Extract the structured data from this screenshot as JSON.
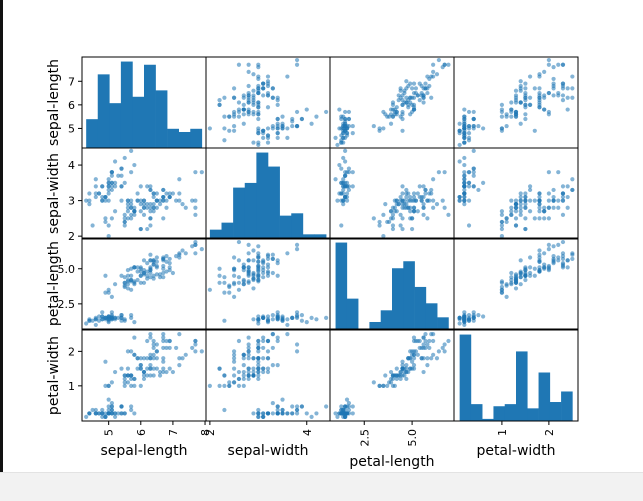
{
  "colors": {
    "marker": "#1f77b4",
    "frame": "#000000",
    "background": "#ffffff"
  },
  "chart_data": {
    "type": "scatter",
    "kind": "scatter-matrix",
    "diagonal": "histogram",
    "grid": false,
    "variables": [
      "sepal-length",
      "sepal-width",
      "petal-length",
      "petal-width"
    ],
    "ranges": {
      "sepal-length": [
        4.17,
        8.03
      ],
      "sepal-width": [
        1.92,
        4.48
      ],
      "petal-length": [
        0.71,
        7.19
      ],
      "petal-width": [
        -0.02,
        2.62
      ]
    },
    "ticks": {
      "sepal-length": {
        "values": [
          5,
          6,
          7
        ],
        "labels": [
          "5",
          "6",
          "7"
        ]
      },
      "sepal-width": {
        "values": [
          2,
          3,
          4
        ],
        "labels": [
          "2",
          "3",
          "4"
        ]
      },
      "petal-length": {
        "values": [
          2.5,
          5.0
        ],
        "labels": [
          "2.5",
          "5.0"
        ]
      },
      "petal-width": {
        "values": [
          1,
          2
        ],
        "labels": [
          "1",
          "2"
        ]
      }
    },
    "bottom_ticks": {
      "sepal-length": {
        "values": [
          5,
          6,
          7,
          8
        ],
        "labels": [
          "5",
          "6",
          "7",
          "8"
        ]
      },
      "sepal-width": {
        "values": [
          2,
          4
        ],
        "labels": [
          "2",
          "4"
        ]
      },
      "petal-length": {
        "values": [
          2.5,
          5.0
        ],
        "labels": [
          "2.5",
          "5.0"
        ]
      },
      "petal-width": {
        "values": [
          1,
          2
        ],
        "labels": [
          "1",
          "2"
        ]
      }
    },
    "histograms": {
      "sepal-length": {
        "range": [
          4.3,
          7.9
        ],
        "counts": [
          9,
          23,
          14,
          27,
          16,
          26,
          18,
          6,
          5,
          6
        ]
      },
      "sepal-width": {
        "range": [
          2.0,
          4.4
        ],
        "counts": [
          4,
          7,
          22,
          24,
          37,
          31,
          10,
          11,
          2,
          2
        ]
      },
      "petal-length": {
        "range": [
          1.0,
          6.9
        ],
        "counts": [
          37,
          13,
          0,
          3,
          8,
          26,
          29,
          18,
          11,
          5
        ]
      },
      "petal-width": {
        "range": [
          0.1,
          2.5
        ],
        "counts": [
          41,
          8,
          1,
          7,
          8,
          33,
          6,
          23,
          9,
          14
        ]
      }
    },
    "observations": [
      [
        5.1,
        3.5,
        1.4,
        0.2
      ],
      [
        4.9,
        3.0,
        1.4,
        0.2
      ],
      [
        4.7,
        3.2,
        1.3,
        0.2
      ],
      [
        4.6,
        3.1,
        1.5,
        0.2
      ],
      [
        5.0,
        3.6,
        1.4,
        0.2
      ],
      [
        5.4,
        3.9,
        1.7,
        0.4
      ],
      [
        4.6,
        3.4,
        1.4,
        0.3
      ],
      [
        5.0,
        3.4,
        1.5,
        0.2
      ],
      [
        4.4,
        2.9,
        1.4,
        0.2
      ],
      [
        4.9,
        3.1,
        1.5,
        0.1
      ],
      [
        5.4,
        3.7,
        1.5,
        0.2
      ],
      [
        4.8,
        3.4,
        1.6,
        0.2
      ],
      [
        4.8,
        3.0,
        1.4,
        0.1
      ],
      [
        4.3,
        3.0,
        1.1,
        0.1
      ],
      [
        5.8,
        4.0,
        1.2,
        0.2
      ],
      [
        5.7,
        4.4,
        1.5,
        0.4
      ],
      [
        5.4,
        3.9,
        1.3,
        0.4
      ],
      [
        5.1,
        3.5,
        1.4,
        0.3
      ],
      [
        5.7,
        3.8,
        1.7,
        0.3
      ],
      [
        5.1,
        3.8,
        1.5,
        0.3
      ],
      [
        5.4,
        3.4,
        1.7,
        0.2
      ],
      [
        5.1,
        3.7,
        1.5,
        0.4
      ],
      [
        4.6,
        3.6,
        1.0,
        0.2
      ],
      [
        5.1,
        3.3,
        1.7,
        0.5
      ],
      [
        4.8,
        3.4,
        1.9,
        0.2
      ],
      [
        5.0,
        3.0,
        1.6,
        0.2
      ],
      [
        5.0,
        3.4,
        1.6,
        0.4
      ],
      [
        5.2,
        3.5,
        1.5,
        0.2
      ],
      [
        5.2,
        3.4,
        1.4,
        0.2
      ],
      [
        4.7,
        3.2,
        1.6,
        0.2
      ],
      [
        4.8,
        3.1,
        1.6,
        0.2
      ],
      [
        5.4,
        3.4,
        1.5,
        0.4
      ],
      [
        5.2,
        4.1,
        1.5,
        0.1
      ],
      [
        5.5,
        4.2,
        1.4,
        0.2
      ],
      [
        4.9,
        3.1,
        1.5,
        0.1
      ],
      [
        5.0,
        3.2,
        1.2,
        0.2
      ],
      [
        5.5,
        3.5,
        1.3,
        0.2
      ],
      [
        4.9,
        3.1,
        1.5,
        0.1
      ],
      [
        4.4,
        3.0,
        1.3,
        0.2
      ],
      [
        5.1,
        3.4,
        1.5,
        0.2
      ],
      [
        5.0,
        3.5,
        1.3,
        0.3
      ],
      [
        4.5,
        2.3,
        1.3,
        0.3
      ],
      [
        4.4,
        3.2,
        1.3,
        0.2
      ],
      [
        5.0,
        3.5,
        1.6,
        0.6
      ],
      [
        5.1,
        3.8,
        1.9,
        0.4
      ],
      [
        4.8,
        3.0,
        1.4,
        0.3
      ],
      [
        5.1,
        3.8,
        1.6,
        0.2
      ],
      [
        4.6,
        3.2,
        1.4,
        0.2
      ],
      [
        5.3,
        3.7,
        1.5,
        0.2
      ],
      [
        5.0,
        3.3,
        1.4,
        0.2
      ],
      [
        7.0,
        3.2,
        4.7,
        1.4
      ],
      [
        6.4,
        3.2,
        4.5,
        1.5
      ],
      [
        6.9,
        3.1,
        4.9,
        1.5
      ],
      [
        5.5,
        2.3,
        4.0,
        1.3
      ],
      [
        6.5,
        2.8,
        4.6,
        1.5
      ],
      [
        5.7,
        2.8,
        4.5,
        1.3
      ],
      [
        6.3,
        3.3,
        4.7,
        1.6
      ],
      [
        4.9,
        2.4,
        3.3,
        1.0
      ],
      [
        6.6,
        2.9,
        4.6,
        1.3
      ],
      [
        5.2,
        2.7,
        3.9,
        1.4
      ],
      [
        5.0,
        2.0,
        3.5,
        1.0
      ],
      [
        5.9,
        3.0,
        4.2,
        1.5
      ],
      [
        6.0,
        2.2,
        4.0,
        1.0
      ],
      [
        6.1,
        2.9,
        4.7,
        1.4
      ],
      [
        5.6,
        2.9,
        3.6,
        1.3
      ],
      [
        6.7,
        3.1,
        4.4,
        1.4
      ],
      [
        5.6,
        3.0,
        4.5,
        1.5
      ],
      [
        5.8,
        2.7,
        4.1,
        1.0
      ],
      [
        6.2,
        2.2,
        4.5,
        1.5
      ],
      [
        5.6,
        2.5,
        3.9,
        1.1
      ],
      [
        5.9,
        3.2,
        4.8,
        1.8
      ],
      [
        6.1,
        2.8,
        4.0,
        1.3
      ],
      [
        6.3,
        2.5,
        4.9,
        1.5
      ],
      [
        6.1,
        2.8,
        4.7,
        1.2
      ],
      [
        6.4,
        2.9,
        4.3,
        1.3
      ],
      [
        6.6,
        3.0,
        4.4,
        1.4
      ],
      [
        6.8,
        2.8,
        4.8,
        1.4
      ],
      [
        6.7,
        3.0,
        5.0,
        1.7
      ],
      [
        6.0,
        2.9,
        4.5,
        1.5
      ],
      [
        5.7,
        2.6,
        3.5,
        1.0
      ],
      [
        5.5,
        2.4,
        3.8,
        1.1
      ],
      [
        5.5,
        2.4,
        3.7,
        1.0
      ],
      [
        5.8,
        2.7,
        3.9,
        1.2
      ],
      [
        6.0,
        2.7,
        5.1,
        1.6
      ],
      [
        5.4,
        3.0,
        4.5,
        1.5
      ],
      [
        6.0,
        3.4,
        4.5,
        1.6
      ],
      [
        6.7,
        3.1,
        4.7,
        1.5
      ],
      [
        6.3,
        2.3,
        4.4,
        1.3
      ],
      [
        5.6,
        3.0,
        4.1,
        1.3
      ],
      [
        5.5,
        2.5,
        4.0,
        1.3
      ],
      [
        5.5,
        2.6,
        4.4,
        1.2
      ],
      [
        6.1,
        3.0,
        4.6,
        1.4
      ],
      [
        5.8,
        2.6,
        4.0,
        1.2
      ],
      [
        5.0,
        2.3,
        3.3,
        1.0
      ],
      [
        5.6,
        2.7,
        4.2,
        1.3
      ],
      [
        5.7,
        3.0,
        4.2,
        1.2
      ],
      [
        5.7,
        2.9,
        4.2,
        1.3
      ],
      [
        6.2,
        2.9,
        4.3,
        1.3
      ],
      [
        5.1,
        2.5,
        3.0,
        1.1
      ],
      [
        5.7,
        2.8,
        4.1,
        1.3
      ],
      [
        6.3,
        3.3,
        6.0,
        2.5
      ],
      [
        5.8,
        2.7,
        5.1,
        1.9
      ],
      [
        7.1,
        3.0,
        5.9,
        2.1
      ],
      [
        6.3,
        2.9,
        5.6,
        1.8
      ],
      [
        6.5,
        3.0,
        5.8,
        2.2
      ],
      [
        7.6,
        3.0,
        6.6,
        2.1
      ],
      [
        4.9,
        2.5,
        4.5,
        1.7
      ],
      [
        7.3,
        2.9,
        6.3,
        1.8
      ],
      [
        6.7,
        2.5,
        5.8,
        1.8
      ],
      [
        7.2,
        3.6,
        6.1,
        2.5
      ],
      [
        6.5,
        3.2,
        5.1,
        2.0
      ],
      [
        6.4,
        2.7,
        5.3,
        1.9
      ],
      [
        6.8,
        3.0,
        5.5,
        2.1
      ],
      [
        5.7,
        2.5,
        5.0,
        2.0
      ],
      [
        5.8,
        2.8,
        5.1,
        2.4
      ],
      [
        6.4,
        3.2,
        5.3,
        2.3
      ],
      [
        6.5,
        3.0,
        5.5,
        1.8
      ],
      [
        7.7,
        3.8,
        6.7,
        2.2
      ],
      [
        7.7,
        2.6,
        6.9,
        2.3
      ],
      [
        6.0,
        2.2,
        5.0,
        1.5
      ],
      [
        6.9,
        3.2,
        5.7,
        2.3
      ],
      [
        5.6,
        2.8,
        4.9,
        2.0
      ],
      [
        7.7,
        2.8,
        6.7,
        2.0
      ],
      [
        6.3,
        2.7,
        4.9,
        1.8
      ],
      [
        6.7,
        3.3,
        5.7,
        2.1
      ],
      [
        7.2,
        3.2,
        6.0,
        1.8
      ],
      [
        6.2,
        2.8,
        4.8,
        1.8
      ],
      [
        6.1,
        3.0,
        4.9,
        1.8
      ],
      [
        6.4,
        2.8,
        5.6,
        2.1
      ],
      [
        7.2,
        3.0,
        5.8,
        1.6
      ],
      [
        7.4,
        2.8,
        6.1,
        1.9
      ],
      [
        7.9,
        3.8,
        6.4,
        2.0
      ],
      [
        6.4,
        2.8,
        5.6,
        2.2
      ],
      [
        6.3,
        2.8,
        5.1,
        1.5
      ],
      [
        6.1,
        2.6,
        5.6,
        1.4
      ],
      [
        7.7,
        3.0,
        6.1,
        2.3
      ],
      [
        6.3,
        3.4,
        5.6,
        2.4
      ],
      [
        6.4,
        3.1,
        5.5,
        1.8
      ],
      [
        6.0,
        3.0,
        4.8,
        1.8
      ],
      [
        6.9,
        3.1,
        5.4,
        2.1
      ],
      [
        6.7,
        3.1,
        5.6,
        2.4
      ],
      [
        6.9,
        3.1,
        5.1,
        2.3
      ],
      [
        5.8,
        2.7,
        5.1,
        1.9
      ],
      [
        6.8,
        3.2,
        5.9,
        2.3
      ],
      [
        6.7,
        3.3,
        5.7,
        2.5
      ],
      [
        6.7,
        3.0,
        5.2,
        2.3
      ],
      [
        6.3,
        2.5,
        5.0,
        1.9
      ],
      [
        6.5,
        3.0,
        5.2,
        2.0
      ],
      [
        6.2,
        3.4,
        5.4,
        2.3
      ],
      [
        5.9,
        3.0,
        5.1,
        1.8
      ]
    ]
  }
}
